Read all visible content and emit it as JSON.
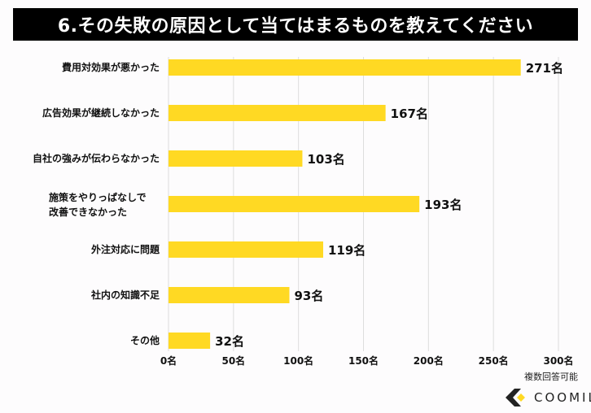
{
  "chart_data": {
    "type": "bar",
    "orientation": "horizontal",
    "title": "6.その失敗の原因として当てはまるものを教えてください",
    "categories": [
      "費用対効果が悪かった",
      "広告効果が継続しなかった",
      "自社の強みが伝わらなかった",
      "施策をやりっぱなしで\n改善できなかった",
      "外注対応に問題",
      "社内の知識不足",
      "その他"
    ],
    "values": [
      271,
      167,
      103,
      193,
      119,
      93,
      32
    ],
    "value_suffix": "名",
    "xlim": [
      0,
      300
    ],
    "ticks": [
      0,
      50,
      100,
      150,
      200,
      250,
      300
    ],
    "tick_labels": [
      "0名",
      "50名",
      "100名",
      "150名",
      "200名",
      "250名",
      "300名"
    ],
    "grid": true,
    "bar_color": "#FFD923"
  },
  "note": "複数回答可能",
  "logo": {
    "text": "COOMIL",
    "accent": "#FFD923"
  }
}
